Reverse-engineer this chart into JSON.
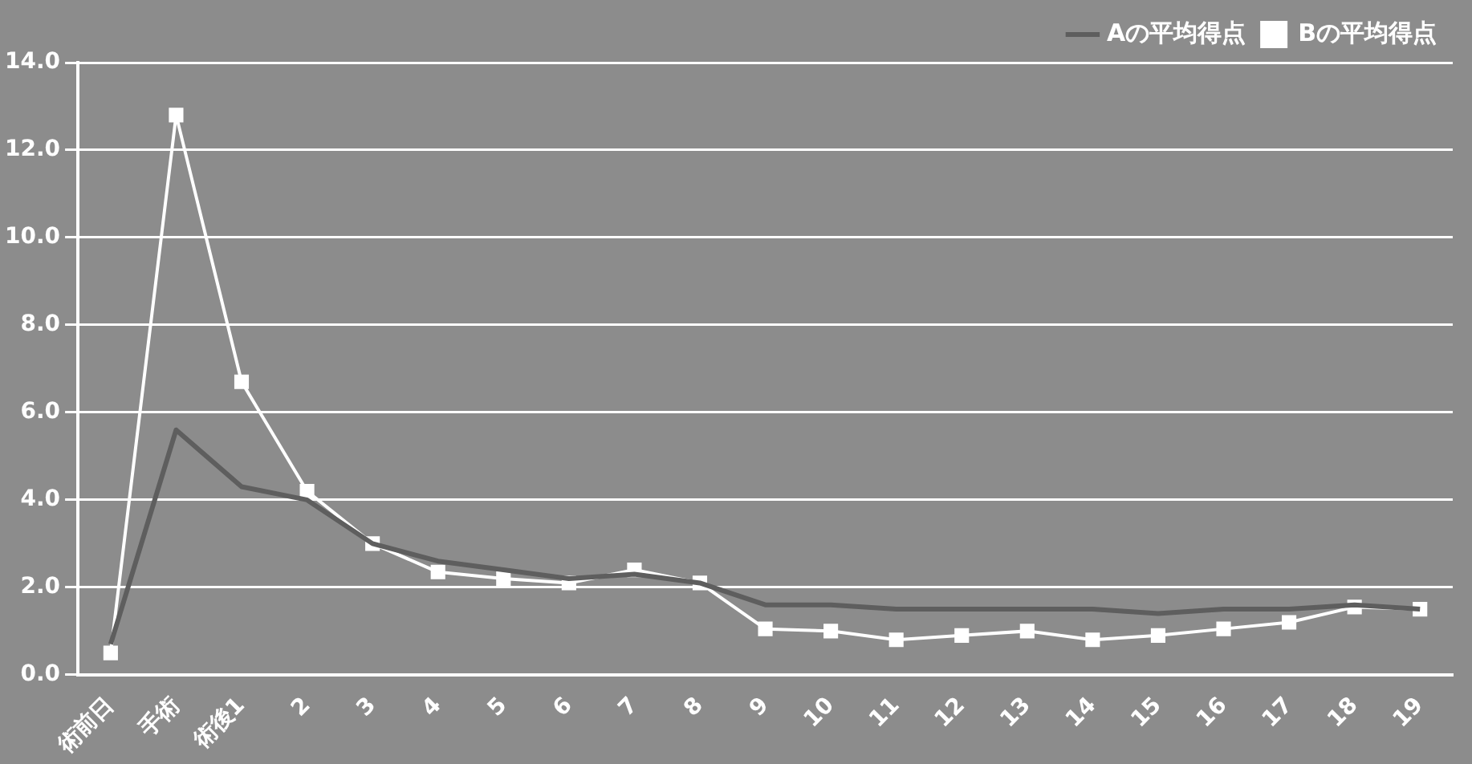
{
  "chart_data": {
    "type": "line",
    "categories": [
      "術前日",
      "手術",
      "術後1",
      "2",
      "3",
      "4",
      "5",
      "6",
      "7",
      "8",
      "9",
      "10",
      "11",
      "12",
      "13",
      "14",
      "15",
      "16",
      "17",
      "18",
      "19"
    ],
    "series": [
      {
        "name": "Aの平均得点",
        "color": "#5e5e5e",
        "marker": "none",
        "values": [
          0.7,
          5.6,
          4.3,
          4.0,
          3.0,
          2.6,
          2.4,
          2.2,
          2.3,
          2.1,
          1.6,
          1.6,
          1.5,
          1.5,
          1.5,
          1.5,
          1.4,
          1.5,
          1.5,
          1.6,
          1.5
        ]
      },
      {
        "name": "Bの平均得点",
        "color": "#ffffff",
        "marker": "square",
        "values": [
          0.5,
          12.8,
          6.7,
          4.2,
          3.0,
          2.35,
          2.2,
          2.1,
          2.4,
          2.1,
          1.05,
          1.0,
          0.8,
          0.9,
          1.0,
          0.8,
          0.9,
          1.05,
          1.2,
          1.55,
          1.5
        ]
      }
    ],
    "ylim": [
      0,
      14
    ],
    "yticks": [
      {
        "value": 0,
        "label": "0.0"
      },
      {
        "value": 2,
        "label": "2.0"
      },
      {
        "value": 4,
        "label": "4.0"
      },
      {
        "value": 6,
        "label": "6.0"
      },
      {
        "value": 8,
        "label": "8.0"
      },
      {
        "value": 10,
        "label": "10.0"
      },
      {
        "value": 12,
        "label": "12.0"
      },
      {
        "value": 14,
        "label": "14.0"
      }
    ],
    "grid": "y",
    "legend": "top right"
  }
}
